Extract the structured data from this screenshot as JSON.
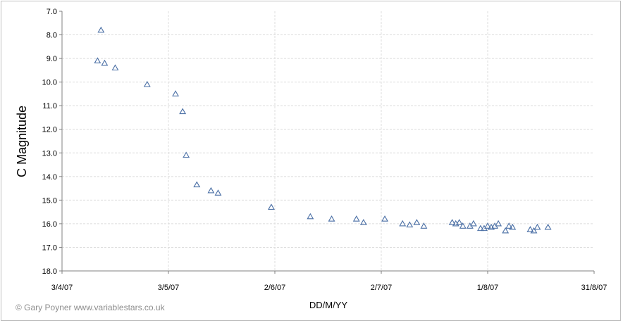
{
  "chart_data": {
    "type": "scatter",
    "xlabel": "DD/M/YY",
    "ylabel": "C Magnitude",
    "ylim": [
      18.0,
      7.0
    ],
    "y_inverted": true,
    "xlim": [
      "2007-04-03",
      "2007-08-31"
    ],
    "y_ticks": [
      "7.0",
      "8.0",
      "9.0",
      "10.0",
      "11.0",
      "12.0",
      "13.0",
      "14.0",
      "15.0",
      "16.0",
      "17.0",
      "18.0"
    ],
    "x_ticks": [
      {
        "date": "2007-04-03",
        "label": "3/4/07"
      },
      {
        "date": "2007-05-03",
        "label": "3/5/07"
      },
      {
        "date": "2007-06-02",
        "label": "2/6/07"
      },
      {
        "date": "2007-07-02",
        "label": "2/7/07"
      },
      {
        "date": "2007-08-01",
        "label": "1/8/07"
      },
      {
        "date": "2007-08-31",
        "label": "31/8/07"
      }
    ],
    "grid": true,
    "marker": "triangle",
    "color": "#4a6fa5",
    "series": [
      {
        "points": [
          {
            "x": "2007-04-13",
            "y": 9.1
          },
          {
            "x": "2007-04-14",
            "y": 7.8
          },
          {
            "x": "2007-04-15",
            "y": 9.2
          },
          {
            "x": "2007-04-18",
            "y": 9.4
          },
          {
            "x": "2007-04-27",
            "y": 10.1
          },
          {
            "x": "2007-05-05",
            "y": 10.5
          },
          {
            "x": "2007-05-07",
            "y": 11.25
          },
          {
            "x": "2007-05-08",
            "y": 13.1
          },
          {
            "x": "2007-05-11",
            "y": 14.35
          },
          {
            "x": "2007-05-15",
            "y": 14.6
          },
          {
            "x": "2007-05-17",
            "y": 14.7
          },
          {
            "x": "2007-06-01",
            "y": 15.3
          },
          {
            "x": "2007-06-12",
            "y": 15.7
          },
          {
            "x": "2007-06-18",
            "y": 15.8
          },
          {
            "x": "2007-06-25",
            "y": 15.8
          },
          {
            "x": "2007-06-27",
            "y": 15.95
          },
          {
            "x": "2007-07-03",
            "y": 15.8
          },
          {
            "x": "2007-07-08",
            "y": 16.0
          },
          {
            "x": "2007-07-10",
            "y": 16.05
          },
          {
            "x": "2007-07-12",
            "y": 15.95
          },
          {
            "x": "2007-07-14",
            "y": 16.1
          },
          {
            "x": "2007-07-22",
            "y": 15.95
          },
          {
            "x": "2007-07-23",
            "y": 16.0
          },
          {
            "x": "2007-07-24",
            "y": 15.95
          },
          {
            "x": "2007-07-25",
            "y": 16.1
          },
          {
            "x": "2007-07-27",
            "y": 16.1
          },
          {
            "x": "2007-07-28",
            "y": 16.0
          },
          {
            "x": "2007-07-30",
            "y": 16.2
          },
          {
            "x": "2007-07-31",
            "y": 16.2
          },
          {
            "x": "2007-08-01",
            "y": 16.1
          },
          {
            "x": "2007-08-02",
            "y": 16.15
          },
          {
            "x": "2007-08-03",
            "y": 16.1
          },
          {
            "x": "2007-08-04",
            "y": 16.0
          },
          {
            "x": "2007-08-06",
            "y": 16.3
          },
          {
            "x": "2007-08-07",
            "y": 16.1
          },
          {
            "x": "2007-08-08",
            "y": 16.15
          },
          {
            "x": "2007-08-13",
            "y": 16.25
          },
          {
            "x": "2007-08-14",
            "y": 16.3
          },
          {
            "x": "2007-08-15",
            "y": 16.15
          },
          {
            "x": "2007-08-18",
            "y": 16.15
          }
        ]
      }
    ]
  },
  "credit": "© Gary Poyner  www.variablestars.co.uk"
}
